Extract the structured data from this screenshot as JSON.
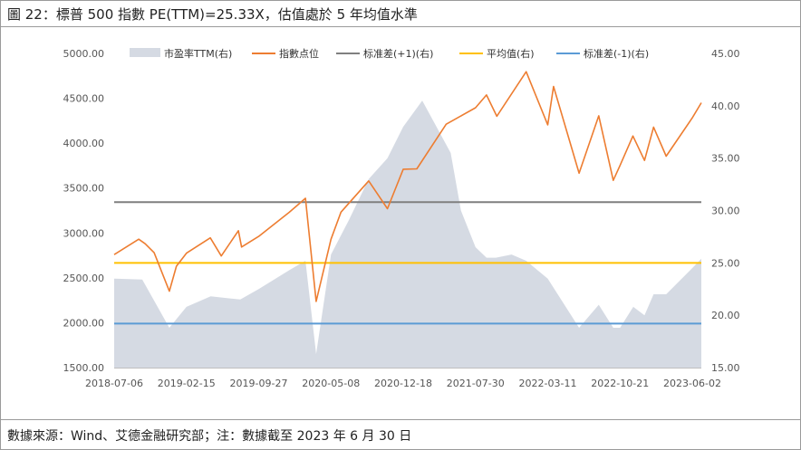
{
  "page": {
    "title": "圖 22：標普 500 指數 PE(TTM)=25.33X，估值處於 5 年均值水準",
    "source": "數據來源：Wind、艾德金融研究部；注：數據截至 2023 年 6 月 30 日"
  },
  "chart_data": {
    "type": "line",
    "title": "圖 22：標普 500 指數 PE(TTM)=25.33X，估值處於 5 年均值水準",
    "x_tick_labels": [
      "2018-07-06",
      "2019-02-15",
      "2019-09-27",
      "2020-05-08",
      "2020-12-18",
      "2021-07-30",
      "2022-03-11",
      "2022-10-21",
      "2023-06-02"
    ],
    "y_left": {
      "ylim": [
        1500,
        5000
      ],
      "tick_labels": [
        "5000.00",
        "4500.00",
        "4000.00",
        "3500.00",
        "3000.00",
        "2500.00",
        "2000.00",
        "1500.00"
      ]
    },
    "y_right": {
      "ylim": [
        15,
        45
      ],
      "tick_labels": [
        "45.00",
        "40.00",
        "35.00",
        "30.00",
        "25.00",
        "20.00",
        "15.00"
      ]
    },
    "legend_position": "top",
    "colors": {
      "pe": "#d5dae3",
      "index": "#ed7d31",
      "plus1sd": "#7f7f7f",
      "mean": "#ffc000",
      "minus1sd": "#5b9bd5"
    },
    "series": [
      {
        "name": "市盈率TTM(右)",
        "axis": "right",
        "kind": "area",
        "x": [
          "2018-07-06",
          "2018-10-01",
          "2018-12-24",
          "2019-02-15",
          "2019-05-01",
          "2019-08-01",
          "2019-09-27",
          "2019-12-31",
          "2020-02-19",
          "2020-03-23",
          "2020-05-08",
          "2020-07-01",
          "2020-09-02",
          "2020-10-30",
          "2020-12-18",
          "2021-02-15",
          "2021-05-14",
          "2021-06-15",
          "2021-07-30",
          "2021-09-02",
          "2021-10-01",
          "2021-11-19",
          "2022-01-03",
          "2022-03-11",
          "2022-06-16",
          "2022-08-16",
          "2022-09-30",
          "2022-10-21",
          "2022-12-01",
          "2023-01-05",
          "2023-02-02",
          "2023-03-13",
          "2023-06-02",
          "2023-06-30"
        ],
        "values": [
          23.5,
          23.4,
          18.8,
          20.8,
          21.8,
          21.5,
          22.5,
          24.3,
          25.2,
          16.3,
          25.8,
          29.0,
          33.0,
          35.0,
          38.0,
          40.5,
          35.5,
          30.0,
          26.5,
          25.5,
          25.5,
          25.8,
          25.2,
          23.5,
          18.8,
          21.0,
          18.8,
          18.8,
          20.8,
          20.0,
          22.0,
          22.0,
          24.5,
          25.4
        ]
      },
      {
        "name": "指數点位",
        "axis": "left",
        "kind": "line",
        "x": [
          "2018-07-06",
          "2018-09-20",
          "2018-10-10",
          "2018-11-07",
          "2018-12-24",
          "2019-01-15",
          "2019-02-15",
          "2019-04-30",
          "2019-06-03",
          "2019-07-26",
          "2019-08-05",
          "2019-09-27",
          "2019-12-31",
          "2020-02-19",
          "2020-03-23",
          "2020-05-08",
          "2020-06-08",
          "2020-09-02",
          "2020-10-30",
          "2020-12-18",
          "2021-01-29",
          "2021-04-30",
          "2021-07-30",
          "2021-09-02",
          "2021-10-04",
          "2022-01-03",
          "2022-03-11",
          "2022-03-29",
          "2022-06-16",
          "2022-08-16",
          "2022-09-30",
          "2022-10-21",
          "2022-11-30",
          "2023-01-05",
          "2023-02-02",
          "2023-03-13",
          "2023-06-02",
          "2023-06-30"
        ],
        "values": [
          2759,
          2930,
          2880,
          2780,
          2351,
          2630,
          2775,
          2945,
          2744,
          3025,
          2844,
          2962,
          3231,
          3386,
          2237,
          2930,
          3232,
          3580,
          3270,
          3710,
          3714,
          4211,
          4395,
          4537,
          4300,
          4796,
          4204,
          4632,
          3666,
          4305,
          3586,
          3752,
          4080,
          3808,
          4179,
          3855,
          4282,
          4450
        ]
      },
      {
        "name": "标准差(+1)(右)",
        "axis": "right",
        "kind": "hline",
        "values": [
          30.8
        ]
      },
      {
        "name": "平均值(右)",
        "axis": "right",
        "kind": "hline",
        "values": [
          25.0
        ]
      },
      {
        "name": "标准差(-1)(右)",
        "axis": "right",
        "kind": "hline",
        "values": [
          19.2
        ]
      }
    ]
  }
}
